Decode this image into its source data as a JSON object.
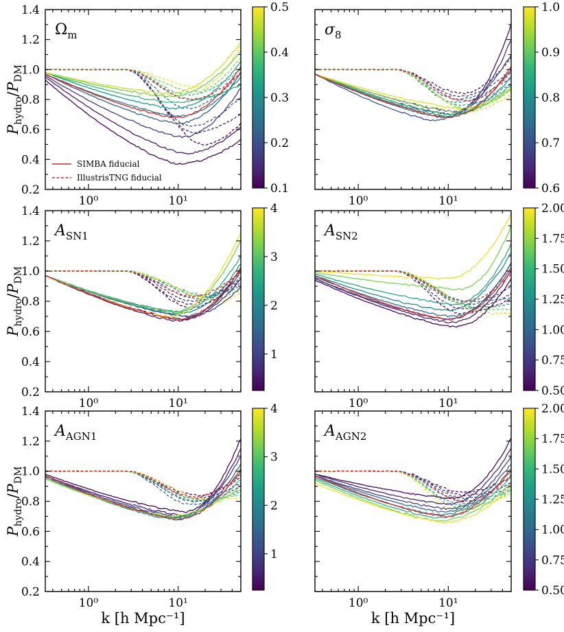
{
  "figure": {
    "ylabel_main": "P",
    "ylabel_num_sub": "hydro",
    "ylabel_slash": "/",
    "ylabel_den_sub": "DM",
    "xlabel": "k [h Mpc⁻¹]",
    "legend": {
      "simba": "SIMBA fiducial",
      "tng": "IllustrisTNG fiducial"
    }
  },
  "colors": {
    "fiducial": "#d62728",
    "viridis": [
      "#440154",
      "#482878",
      "#3e4989",
      "#31688e",
      "#26828e",
      "#1f9e89",
      "#35b779",
      "#6ece58",
      "#b5de2b",
      "#fde725"
    ]
  },
  "chart_data": [
    {
      "type": "line",
      "panel_label": "Ω",
      "panel_label_sub": "m",
      "title": "Omega_m",
      "xlabel": "k [h Mpc^-1]",
      "ylabel": "P_hydro/P_DM",
      "xscale": "log",
      "xlim": [
        0.33,
        50
      ],
      "ylim": [
        0.2,
        1.4
      ],
      "yticks": [
        "0.2",
        "0.4",
        "0.6",
        "0.8",
        "1.0",
        "1.2",
        "1.4"
      ],
      "xticks": [
        "10⁰",
        "10¹"
      ],
      "show_legend": true,
      "colorbar": {
        "min": 0.1,
        "max": 0.5,
        "ticks": [
          "0.1",
          "0.2",
          "0.3",
          "0.4",
          "0.5"
        ]
      },
      "simba_fiducial": {
        "min": 0.68,
        "kmin": 9.5,
        "end": 1.02
      },
      "tng_fiducial": {
        "min": 0.8,
        "kmin": 14,
        "end": 0.98
      },
      "simba_series": [
        {
          "param": 0.1,
          "start": 0.93,
          "min": 0.37,
          "kmin": 10,
          "end": 0.53
        },
        {
          "param": 0.13,
          "start": 0.95,
          "min": 0.44,
          "kmin": 12,
          "end": 0.62
        },
        {
          "param": 0.17,
          "start": 0.96,
          "min": 0.55,
          "kmin": 11,
          "end": 0.88
        },
        {
          "param": 0.22,
          "start": 0.97,
          "min": 0.64,
          "kmin": 10,
          "end": 0.98
        },
        {
          "param": 0.27,
          "start": 0.97,
          "min": 0.69,
          "kmin": 10,
          "end": 0.95
        },
        {
          "param": 0.32,
          "start": 0.98,
          "min": 0.74,
          "kmin": 9,
          "end": 1.05
        },
        {
          "param": 0.37,
          "start": 0.98,
          "min": 0.78,
          "kmin": 9,
          "end": 0.9
        },
        {
          "param": 0.42,
          "start": 0.98,
          "min": 0.82,
          "kmin": 8,
          "end": 1.12
        },
        {
          "param": 0.47,
          "start": 0.98,
          "min": 0.84,
          "kmin": 8,
          "end": 1.18
        }
      ],
      "tng_series": [
        {
          "param": 0.1,
          "min": 0.5,
          "kmin": 20,
          "end": 0.64
        },
        {
          "param": 0.14,
          "min": 0.58,
          "kmin": 15,
          "end": 0.7
        },
        {
          "param": 0.19,
          "min": 0.62,
          "kmin": 14,
          "end": 0.82
        },
        {
          "param": 0.25,
          "min": 0.74,
          "kmin": 13,
          "end": 0.98
        },
        {
          "param": 0.3,
          "min": 0.8,
          "kmin": 14,
          "end": 0.9
        },
        {
          "param": 0.36,
          "min": 0.83,
          "kmin": 13,
          "end": 1.0
        },
        {
          "param": 0.42,
          "min": 0.85,
          "kmin": 16,
          "end": 1.08
        },
        {
          "param": 0.49,
          "min": 0.88,
          "kmin": 18,
          "end": 1.16
        }
      ]
    },
    {
      "type": "line",
      "panel_label": "σ",
      "panel_label_sub": "8",
      "title": "sigma_8",
      "xlabel": "k [h Mpc^-1]",
      "ylabel": "P_hydro/P_DM",
      "xscale": "log",
      "xlim": [
        0.33,
        50
      ],
      "ylim": [
        0.2,
        1.4
      ],
      "yticks": [
        "0.2",
        "0.4",
        "0.6",
        "0.8",
        "1.0",
        "1.2",
        "1.4"
      ],
      "xticks": [
        "10⁰",
        "10¹"
      ],
      "show_legend": false,
      "colorbar": {
        "min": 0.6,
        "max": 1.0,
        "ticks": [
          "0.6",
          "0.7",
          "0.8",
          "0.9",
          "1.0"
        ]
      },
      "simba_fiducial": {
        "min": 0.68,
        "kmin": 10,
        "end": 1.02
      },
      "tng_fiducial": {
        "min": 0.79,
        "kmin": 16,
        "end": 0.98
      },
      "simba_series": [
        {
          "param": 0.62,
          "start": 0.97,
          "min": 0.72,
          "kmin": 12,
          "end": 1.3
        },
        {
          "param": 0.66,
          "start": 0.97,
          "min": 0.7,
          "kmin": 11,
          "end": 1.2
        },
        {
          "param": 0.7,
          "start": 0.97,
          "min": 0.66,
          "kmin": 7,
          "end": 1.1
        },
        {
          "param": 0.75,
          "start": 0.97,
          "min": 0.68,
          "kmin": 9,
          "end": 1.0
        },
        {
          "param": 0.8,
          "start": 0.97,
          "min": 0.69,
          "kmin": 10,
          "end": 0.95
        },
        {
          "param": 0.86,
          "start": 0.97,
          "min": 0.7,
          "kmin": 11,
          "end": 0.9
        },
        {
          "param": 0.92,
          "start": 0.97,
          "min": 0.72,
          "kmin": 12,
          "end": 0.87
        },
        {
          "param": 0.98,
          "start": 0.97,
          "min": 0.74,
          "kmin": 14,
          "end": 0.88
        }
      ],
      "tng_series": [
        {
          "param": 0.62,
          "min": 0.84,
          "kmin": 15,
          "end": 1.08
        },
        {
          "param": 0.67,
          "min": 0.82,
          "kmin": 14,
          "end": 1.0
        },
        {
          "param": 0.73,
          "min": 0.8,
          "kmin": 13,
          "end": 0.95
        },
        {
          "param": 0.79,
          "min": 0.78,
          "kmin": 12,
          "end": 0.9
        },
        {
          "param": 0.85,
          "min": 0.76,
          "kmin": 14,
          "end": 0.88
        },
        {
          "param": 0.91,
          "min": 0.74,
          "kmin": 16,
          "end": 0.86
        },
        {
          "param": 0.97,
          "min": 0.72,
          "kmin": 18,
          "end": 0.84
        }
      ]
    },
    {
      "type": "line",
      "panel_label": "A",
      "panel_label_sub": "SN1",
      "title": "A_SN1",
      "xlabel": "k [h Mpc^-1]",
      "ylabel": "P_hydro/P_DM",
      "xscale": "log",
      "xlim": [
        0.33,
        50
      ],
      "ylim": [
        0.2,
        1.4
      ],
      "yticks": [
        "0.2",
        "0.4",
        "0.6",
        "0.8",
        "1.0",
        "1.2",
        "1.4"
      ],
      "xticks": [
        "10⁰",
        "10¹"
      ],
      "show_legend": false,
      "colorbar": {
        "min": 0.25,
        "max": 4.0,
        "ticks": [
          "1",
          "2",
          "3",
          "4"
        ]
      },
      "simba_fiducial": {
        "min": 0.68,
        "kmin": 10,
        "end": 1.02
      },
      "tng_fiducial": {
        "min": 0.83,
        "kmin": 15,
        "end": 1.0
      },
      "simba_series": [
        {
          "param": 0.3,
          "start": 0.97,
          "min": 0.68,
          "kmin": 11,
          "end": 1.02
        },
        {
          "param": 0.6,
          "start": 0.97,
          "min": 0.67,
          "kmin": 10,
          "end": 0.95
        },
        {
          "param": 1.0,
          "start": 0.97,
          "min": 0.7,
          "kmin": 13,
          "end": 0.9
        },
        {
          "param": 1.5,
          "start": 0.97,
          "min": 0.7,
          "kmin": 12,
          "end": 1.0
        },
        {
          "param": 2.0,
          "start": 0.97,
          "min": 0.72,
          "kmin": 11,
          "end": 1.05
        },
        {
          "param": 2.5,
          "start": 0.97,
          "min": 0.73,
          "kmin": 10,
          "end": 1.1
        },
        {
          "param": 3.2,
          "start": 0.97,
          "min": 0.73,
          "kmin": 9,
          "end": 1.2
        },
        {
          "param": 3.9,
          "start": 0.97,
          "min": 0.7,
          "kmin": 8,
          "end": 1.26
        }
      ],
      "tng_series": [
        {
          "param": 0.3,
          "min": 0.76,
          "kmin": 14,
          "end": 0.95
        },
        {
          "param": 0.6,
          "min": 0.78,
          "kmin": 14,
          "end": 0.98
        },
        {
          "param": 0.9,
          "min": 0.8,
          "kmin": 15,
          "end": 1.0
        },
        {
          "param": 1.4,
          "min": 0.82,
          "kmin": 17,
          "end": 0.96
        },
        {
          "param": 2.0,
          "min": 0.83,
          "kmin": 20,
          "end": 0.92
        },
        {
          "param": 2.6,
          "min": 0.84,
          "kmin": 22,
          "end": 0.9
        },
        {
          "param": 3.2,
          "min": 0.82,
          "kmin": 26,
          "end": 0.88
        },
        {
          "param": 3.9,
          "min": 0.8,
          "kmin": 30,
          "end": 0.86
        }
      ]
    },
    {
      "type": "line",
      "panel_label": "A",
      "panel_label_sub": "SN2",
      "title": "A_SN2",
      "xlabel": "k [h Mpc^-1]",
      "ylabel": "P_hydro/P_DM",
      "xscale": "log",
      "xlim": [
        0.33,
        50
      ],
      "ylim": [
        0.2,
        1.4
      ],
      "yticks": [
        "0.2",
        "0.4",
        "0.6",
        "0.8",
        "1.0",
        "1.2",
        "1.4"
      ],
      "xticks": [
        "10⁰",
        "10¹"
      ],
      "show_legend": false,
      "colorbar": {
        "min": 0.5,
        "max": 2.0,
        "ticks": [
          "0.50",
          "0.75",
          "1.00",
          "1.25",
          "1.50",
          "1.75",
          "2.00"
        ]
      },
      "simba_fiducial": {
        "min": 0.68,
        "kmin": 10,
        "end": 1.02
      },
      "tng_fiducial": {
        "min": 0.8,
        "kmin": 16,
        "end": 0.98
      },
      "simba_series": [
        {
          "param": 0.52,
          "start": 0.94,
          "min": 0.63,
          "kmin": 12,
          "end": 0.95
        },
        {
          "param": 0.65,
          "start": 0.95,
          "min": 0.66,
          "kmin": 11,
          "end": 1.0
        },
        {
          "param": 0.8,
          "start": 0.95,
          "min": 0.68,
          "kmin": 10,
          "end": 1.05
        },
        {
          "param": 1.0,
          "start": 0.96,
          "min": 0.7,
          "kmin": 11,
          "end": 1.05
        },
        {
          "param": 1.2,
          "start": 0.97,
          "min": 0.74,
          "kmin": 10,
          "end": 1.12
        },
        {
          "param": 1.4,
          "start": 0.98,
          "min": 0.78,
          "kmin": 12,
          "end": 1.18
        },
        {
          "param": 1.7,
          "start": 0.99,
          "min": 0.88,
          "kmin": 14,
          "end": 1.3
        },
        {
          "param": 1.95,
          "start": 1.0,
          "min": 0.95,
          "kmin": 10,
          "end": 1.38
        }
      ],
      "tng_series": [
        {
          "param": 0.55,
          "min": 0.72,
          "kmin": 14,
          "end": 0.82
        },
        {
          "param": 0.7,
          "min": 0.75,
          "kmin": 15,
          "end": 0.85
        },
        {
          "param": 0.9,
          "min": 0.78,
          "kmin": 16,
          "end": 0.9
        },
        {
          "param": 1.15,
          "min": 0.8,
          "kmin": 17,
          "end": 0.82
        },
        {
          "param": 1.4,
          "min": 0.76,
          "kmin": 20,
          "end": 0.78
        },
        {
          "param": 1.65,
          "min": 0.75,
          "kmin": 24,
          "end": 0.75
        },
        {
          "param": 1.9,
          "min": 0.72,
          "kmin": 30,
          "end": 0.72
        }
      ]
    },
    {
      "type": "line",
      "panel_label": "A",
      "panel_label_sub": "AGN1",
      "title": "A_AGN1",
      "xlabel": "k [h Mpc^-1]",
      "ylabel": "P_hydro/P_DM",
      "xscale": "log",
      "xlim": [
        0.33,
        50
      ],
      "ylim": [
        0.2,
        1.4
      ],
      "yticks": [
        "0.2",
        "0.4",
        "0.6",
        "0.8",
        "1.0",
        "1.2",
        "1.4"
      ],
      "xticks": [
        "10⁰",
        "10¹"
      ],
      "show_legend": false,
      "colorbar": {
        "min": 0.25,
        "max": 4.0,
        "ticks": [
          "1",
          "2",
          "3",
          "4"
        ]
      },
      "simba_fiducial": {
        "min": 0.68,
        "kmin": 10,
        "end": 1.02
      },
      "tng_fiducial": {
        "min": 0.83,
        "kmin": 16,
        "end": 0.98
      },
      "simba_series": [
        {
          "param": 0.3,
          "start": 0.98,
          "min": 0.73,
          "kmin": 12,
          "end": 1.22
        },
        {
          "param": 0.6,
          "start": 0.97,
          "min": 0.71,
          "kmin": 11,
          "end": 1.15
        },
        {
          "param": 1.0,
          "start": 0.97,
          "min": 0.7,
          "kmin": 10,
          "end": 1.1
        },
        {
          "param": 1.5,
          "start": 0.96,
          "min": 0.69,
          "kmin": 10,
          "end": 1.05
        },
        {
          "param": 2.0,
          "start": 0.96,
          "min": 0.68,
          "kmin": 9,
          "end": 1.0
        },
        {
          "param": 2.8,
          "start": 0.95,
          "min": 0.69,
          "kmin": 9,
          "end": 0.95
        },
        {
          "param": 3.5,
          "start": 0.95,
          "min": 0.7,
          "kmin": 8,
          "end": 0.9
        }
      ],
      "tng_series": [
        {
          "param": 0.3,
          "min": 0.84,
          "kmin": 17,
          "end": 0.96
        },
        {
          "param": 0.6,
          "min": 0.82,
          "kmin": 16,
          "end": 0.92
        },
        {
          "param": 1.0,
          "min": 0.8,
          "kmin": 15,
          "end": 0.9
        },
        {
          "param": 1.6,
          "min": 0.78,
          "kmin": 14,
          "end": 0.88
        },
        {
          "param": 2.4,
          "min": 0.8,
          "kmin": 16,
          "end": 0.86
        },
        {
          "param": 3.2,
          "min": 0.81,
          "kmin": 18,
          "end": 0.84
        },
        {
          "param": 3.9,
          "min": 0.82,
          "kmin": 22,
          "end": 0.82
        }
      ]
    },
    {
      "type": "line",
      "panel_label": "A",
      "panel_label_sub": "AGN2",
      "title": "A_AGN2",
      "xlabel": "k [h Mpc^-1]",
      "ylabel": "P_hydro/P_DM",
      "xscale": "log",
      "xlim": [
        0.33,
        50
      ],
      "ylim": [
        0.2,
        1.4
      ],
      "yticks": [
        "0.2",
        "0.4",
        "0.6",
        "0.8",
        "1.0",
        "1.2",
        "1.4"
      ],
      "xticks": [
        "10⁰",
        "10¹"
      ],
      "show_legend": false,
      "colorbar": {
        "min": 0.5,
        "max": 2.0,
        "ticks": [
          "0.50",
          "0.75",
          "1.00",
          "1.25",
          "1.50",
          "1.75",
          "2.00"
        ]
      },
      "simba_fiducial": {
        "min": 0.7,
        "kmin": 9,
        "end": 1.02
      },
      "tng_fiducial": {
        "min": 0.8,
        "kmin": 16,
        "end": 0.98
      },
      "simba_series": [
        {
          "param": 0.52,
          "start": 0.98,
          "min": 0.82,
          "kmin": 11,
          "end": 1.22
        },
        {
          "param": 0.65,
          "start": 0.98,
          "min": 0.78,
          "kmin": 10,
          "end": 1.15
        },
        {
          "param": 0.8,
          "start": 0.97,
          "min": 0.75,
          "kmin": 10,
          "end": 1.1
        },
        {
          "param": 1.0,
          "start": 0.97,
          "min": 0.73,
          "kmin": 9,
          "end": 1.05
        },
        {
          "param": 1.2,
          "start": 0.96,
          "min": 0.71,
          "kmin": 8,
          "end": 1.0
        },
        {
          "param": 1.45,
          "start": 0.95,
          "min": 0.69,
          "kmin": 8,
          "end": 0.96
        },
        {
          "param": 1.7,
          "start": 0.94,
          "min": 0.67,
          "kmin": 8,
          "end": 0.92
        },
        {
          "param": 1.95,
          "start": 0.92,
          "min": 0.66,
          "kmin": 9,
          "end": 0.9
        }
      ],
      "tng_series": [
        {
          "param": 0.55,
          "min": 0.86,
          "kmin": 15,
          "end": 0.96
        },
        {
          "param": 0.7,
          "min": 0.84,
          "kmin": 16,
          "end": 0.92
        },
        {
          "param": 0.9,
          "min": 0.82,
          "kmin": 16,
          "end": 0.9
        },
        {
          "param": 1.15,
          "min": 0.8,
          "kmin": 15,
          "end": 0.88
        },
        {
          "param": 1.4,
          "min": 0.78,
          "kmin": 14,
          "end": 0.87
        },
        {
          "param": 1.7,
          "min": 0.76,
          "kmin": 14,
          "end": 0.86
        },
        {
          "param": 1.95,
          "min": 0.74,
          "kmin": 13,
          "end": 0.85
        }
      ]
    }
  ]
}
